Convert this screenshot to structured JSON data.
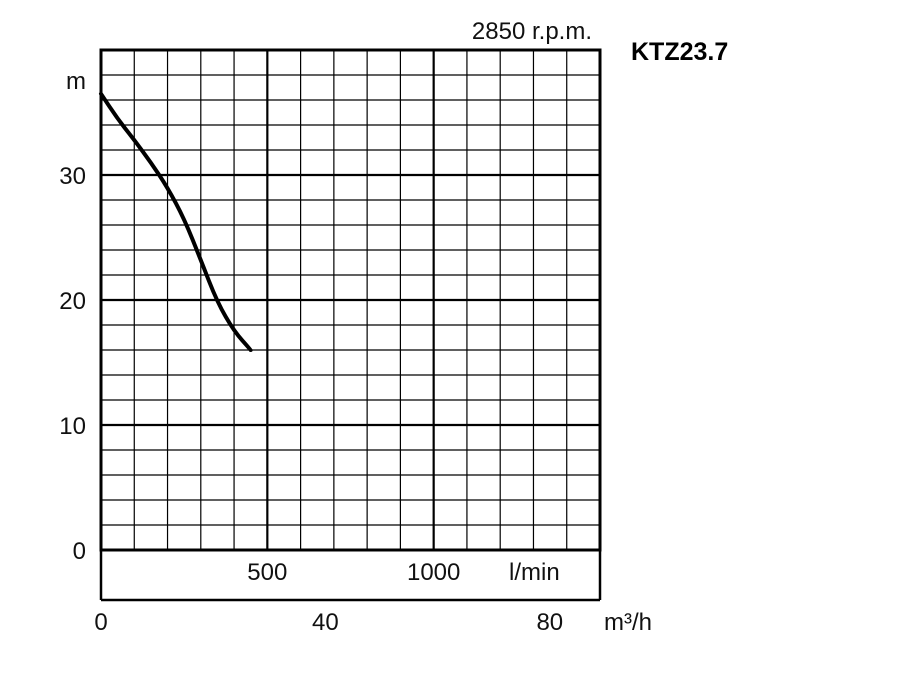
{
  "chart_data": {
    "type": "line",
    "speed_label": "2850 r.p.m.",
    "model": "KTZ23.7",
    "ylabel": "m",
    "xlabel_flow_lmin": "l/min",
    "xlabel_flow_m3h": "m³/h",
    "ylim": [
      0,
      36
    ],
    "xlim_lmin": [
      0,
      1500
    ],
    "y_ticks": [
      {
        "value": 0,
        "label": "0"
      },
      {
        "value": 10,
        "label": "10"
      },
      {
        "value": 20,
        "label": "20"
      },
      {
        "value": 30,
        "label": "30"
      }
    ],
    "x_ticks_lmin": [
      {
        "value": 500,
        "label": "500"
      },
      {
        "value": 1000,
        "label": "1000"
      }
    ],
    "x_ticks_m3h": [
      {
        "value": 0,
        "label": "0"
      },
      {
        "value": 40,
        "label": "40"
      },
      {
        "value": 80,
        "label": "80"
      }
    ],
    "grid": true,
    "series": [
      {
        "x": [
          0,
          50,
          100,
          150,
          200,
          250,
          300,
          350,
          400,
          450
        ],
        "y": [
          36.5,
          34.5,
          32.8,
          31.0,
          29.0,
          26.5,
          23.2,
          19.8,
          17.5,
          16.0
        ]
      }
    ]
  }
}
